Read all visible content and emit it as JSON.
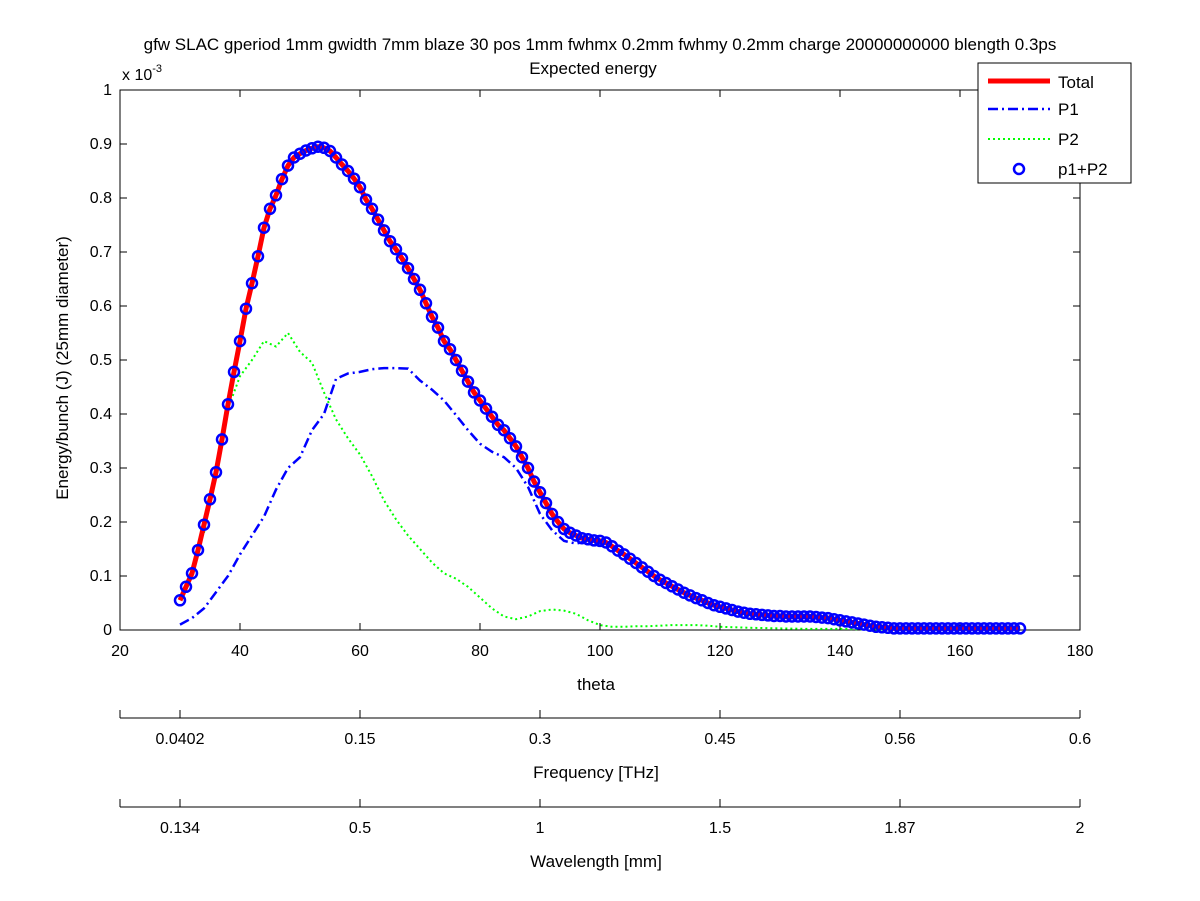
{
  "chart_data": {
    "type": "line",
    "title": "gfw SLAC gperiod 1mm gwidth 7mm blaze 30 pos 1mm fwhmx 0.2mm fwhmy 0.2mm charge 20000000000 blength 0.3ps",
    "subtitle": "Expected energy",
    "xlabel": "theta",
    "ylabel": "Energy/bunch (J) (25mm diameter)",
    "y_exponent_base": "x 10",
    "y_exponent_power": "-3",
    "xlim": [
      20,
      180
    ],
    "ylim": [
      0,
      1
    ],
    "x_ticks": [
      "20",
      "40",
      "60",
      "80",
      "100",
      "120",
      "140",
      "160",
      "180"
    ],
    "y_ticks": [
      "0",
      "0.1",
      "0.2",
      "0.3",
      "0.4",
      "0.5",
      "0.6",
      "0.7",
      "0.8",
      "0.9",
      "1"
    ],
    "grid": false,
    "legend_position": "top-right",
    "series": [
      {
        "name": "Total",
        "style": "solid-thick",
        "color": "#ff0000",
        "x": [
          30,
          31,
          32,
          33,
          34,
          35,
          36,
          37,
          38,
          39,
          40,
          41,
          42,
          43,
          44,
          45,
          46,
          47,
          48,
          49,
          50,
          51,
          52,
          53,
          54,
          55,
          56,
          57,
          58,
          59,
          60,
          61,
          62,
          63,
          64,
          65,
          66,
          67,
          68,
          69,
          70,
          71,
          72,
          73,
          74,
          75,
          76,
          77,
          78,
          79,
          80,
          81,
          82,
          83,
          84,
          85,
          86,
          87,
          88,
          89,
          90,
          91,
          92,
          93,
          94,
          95,
          96,
          97,
          98,
          99,
          100,
          101,
          102,
          103,
          104,
          105,
          106,
          107,
          108,
          109,
          110,
          111,
          112,
          113,
          114,
          115,
          116,
          117,
          118,
          119,
          120,
          121,
          122,
          123,
          124,
          125,
          126,
          127,
          128,
          129,
          130,
          131,
          132,
          133,
          134,
          135,
          136,
          137,
          138,
          139,
          140,
          141,
          142,
          143,
          144,
          145,
          146,
          147,
          148,
          149,
          150,
          151,
          152,
          153,
          154,
          155,
          156,
          157,
          158,
          159,
          160,
          161,
          162,
          163,
          164,
          165,
          166,
          167,
          168,
          169,
          170
        ],
        "values": [
          0.055,
          0.08,
          0.105,
          0.148,
          0.195,
          0.242,
          0.292,
          0.353,
          0.418,
          0.478,
          0.535,
          0.595,
          0.642,
          0.692,
          0.745,
          0.78,
          0.805,
          0.835,
          0.86,
          0.875,
          0.882,
          0.888,
          0.892,
          0.895,
          0.893,
          0.887,
          0.875,
          0.862,
          0.85,
          0.836,
          0.82,
          0.797,
          0.78,
          0.76,
          0.74,
          0.72,
          0.705,
          0.688,
          0.67,
          0.65,
          0.63,
          0.605,
          0.58,
          0.56,
          0.535,
          0.52,
          0.5,
          0.48,
          0.46,
          0.44,
          0.425,
          0.41,
          0.395,
          0.38,
          0.37,
          0.355,
          0.34,
          0.32,
          0.3,
          0.275,
          0.255,
          0.235,
          0.215,
          0.2,
          0.187,
          0.18,
          0.175,
          0.17,
          0.168,
          0.166,
          0.165,
          0.162,
          0.155,
          0.147,
          0.14,
          0.132,
          0.124,
          0.116,
          0.108,
          0.1,
          0.093,
          0.087,
          0.081,
          0.075,
          0.069,
          0.064,
          0.059,
          0.055,
          0.05,
          0.046,
          0.043,
          0.04,
          0.037,
          0.034,
          0.032,
          0.03,
          0.029,
          0.028,
          0.027,
          0.026,
          0.026,
          0.025,
          0.025,
          0.025,
          0.025,
          0.025,
          0.024,
          0.023,
          0.022,
          0.02,
          0.018,
          0.016,
          0.014,
          0.012,
          0.01,
          0.008,
          0.006,
          0.005,
          0.004,
          0.003,
          0.003,
          0.003,
          0.003,
          0.003,
          0.003,
          0.003,
          0.003,
          0.003,
          0.003,
          0.003,
          0.003,
          0.003,
          0.003,
          0.003,
          0.003,
          0.003,
          0.003,
          0.003,
          0.003,
          0.003,
          0.003
        ]
      },
      {
        "name": "P1",
        "style": "dash-dot",
        "color": "#0000ff",
        "x": [
          30,
          32,
          34,
          36,
          38,
          40,
          42,
          44,
          46,
          48,
          50,
          52,
          54,
          56,
          58,
          60,
          62,
          64,
          66,
          68,
          70,
          72,
          74,
          76,
          78,
          80,
          82,
          84,
          86,
          88,
          90,
          92,
          94,
          96,
          98,
          100
        ],
        "values": [
          0.01,
          0.022,
          0.04,
          0.07,
          0.1,
          0.14,
          0.175,
          0.21,
          0.26,
          0.3,
          0.32,
          0.37,
          0.4,
          0.465,
          0.475,
          0.478,
          0.483,
          0.485,
          0.485,
          0.484,
          0.462,
          0.445,
          0.425,
          0.398,
          0.37,
          0.345,
          0.33,
          0.32,
          0.3,
          0.265,
          0.215,
          0.185,
          0.165,
          0.16,
          0.165,
          0.16
        ]
      },
      {
        "name": "P2",
        "style": "dotted",
        "color": "#00ff00",
        "x": [
          34,
          36,
          38,
          40,
          42,
          44,
          46,
          48,
          50,
          52,
          54,
          56,
          58,
          60,
          62,
          64,
          66,
          68,
          70,
          72,
          74,
          76,
          78,
          80,
          82,
          84,
          86,
          88,
          90,
          92,
          94,
          96,
          98,
          100,
          102,
          104,
          106,
          108,
          110,
          112,
          114,
          116,
          118,
          120,
          125,
          130,
          135,
          140,
          145,
          150,
          155,
          160,
          165,
          170
        ],
        "values": [
          0.18,
          0.3,
          0.41,
          0.47,
          0.5,
          0.535,
          0.525,
          0.55,
          0.515,
          0.495,
          0.44,
          0.39,
          0.355,
          0.325,
          0.285,
          0.24,
          0.205,
          0.175,
          0.15,
          0.125,
          0.105,
          0.095,
          0.08,
          0.06,
          0.04,
          0.025,
          0.02,
          0.025,
          0.035,
          0.038,
          0.036,
          0.03,
          0.018,
          0.009,
          0.006,
          0.006,
          0.007,
          0.007,
          0.008,
          0.009,
          0.009,
          0.009,
          0.008,
          0.006,
          0.004,
          0.003,
          0.002,
          0.002,
          0.001,
          0.001,
          0.001,
          0.001,
          0.001,
          0.001
        ]
      },
      {
        "name": "p1+P2",
        "style": "circle-markers",
        "color": "#0000ff",
        "source": "Total"
      }
    ],
    "secondary_axes": [
      {
        "label": "Frequency [THz]",
        "ticks": [
          {
            "theta": 30,
            "label": "0.0402"
          },
          {
            "theta": 60,
            "label": "0.15"
          },
          {
            "theta": 90,
            "label": "0.3"
          },
          {
            "theta": 120,
            "label": "0.45"
          },
          {
            "theta": 150,
            "label": "0.56"
          },
          {
            "theta": 180,
            "label": "0.6"
          }
        ]
      },
      {
        "label": "Wavelength [mm]",
        "ticks": [
          {
            "theta": 30,
            "label": "0.134"
          },
          {
            "theta": 60,
            "label": "0.5"
          },
          {
            "theta": 90,
            "label": "1"
          },
          {
            "theta": 120,
            "label": "1.5"
          },
          {
            "theta": 150,
            "label": "1.87"
          },
          {
            "theta": 180,
            "label": "2"
          }
        ]
      }
    ]
  }
}
